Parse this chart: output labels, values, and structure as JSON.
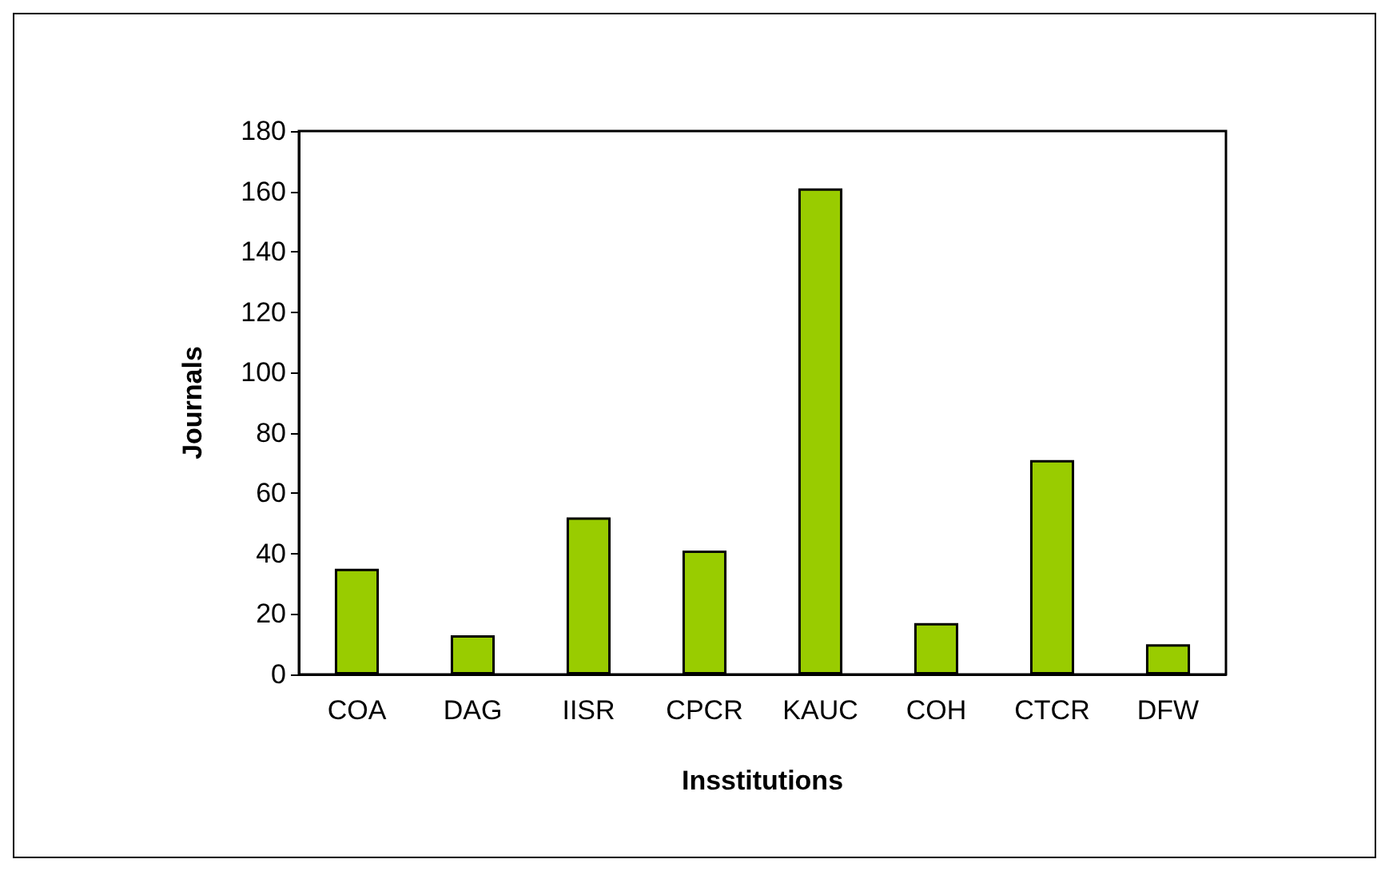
{
  "chart_data": {
    "type": "bar",
    "xlabel": "Insstitutions",
    "ylabel": "Journals",
    "categories": [
      "COA",
      "DAG",
      "IISR",
      "CPCR",
      "KAUC",
      "COH",
      "CTCR",
      "DFW"
    ],
    "values": [
      35,
      13,
      52,
      41,
      161,
      17,
      71,
      10
    ],
    "color": "#99cc00",
    "ylim": [
      0,
      180
    ],
    "yticks": [
      0,
      20,
      40,
      60,
      80,
      100,
      120,
      140,
      160,
      180
    ],
    "grid": false
  }
}
